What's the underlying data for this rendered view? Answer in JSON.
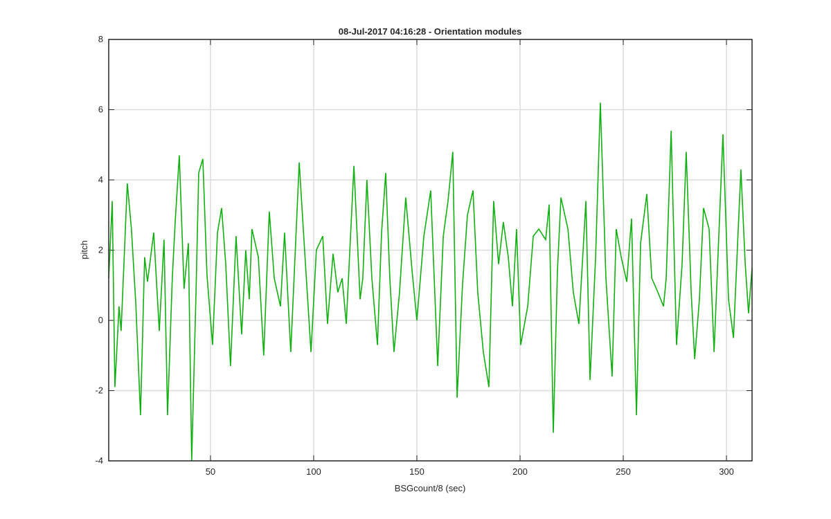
{
  "chart_data": {
    "type": "line",
    "title": "08-Jul-2017 04:16:28 - Orientation modules",
    "x_label": "BSGcount/8 (sec)",
    "y_label": "pitch",
    "xlim": [
      0.7,
      312.4
    ],
    "ylim": [
      -4,
      8
    ],
    "xticks": [
      50,
      100,
      150,
      200,
      250,
      300
    ],
    "yticks": [
      -4,
      -2,
      0,
      2,
      4,
      6,
      8
    ],
    "grid": true,
    "x": [
      0.7,
      2.4,
      3.7,
      5.7,
      6.7,
      9.7,
      11.7,
      13.8,
      16.1,
      18.1,
      19.5,
      22.5,
      25.2,
      27.5,
      29.2,
      31.5,
      32.9,
      34.9,
      37.2,
      39.3,
      40.9,
      43,
      44.3,
      46.3,
      48.3,
      51,
      53.4,
      55.4,
      57.4,
      59.7,
      62.4,
      65.1,
      67.1,
      68.8,
      70.1,
      73.2,
      75.8,
      78.5,
      80.9,
      83.9,
      85.9,
      88.9,
      93,
      95.6,
      98.7,
      101.3,
      104.4,
      106.7,
      109.4,
      111.7,
      113.8,
      115.8,
      119.5,
      122.5,
      123.8,
      125.8,
      128.2,
      130.9,
      132.9,
      134.9,
      136.9,
      138.9,
      141.6,
      144.6,
      147.7,
      150,
      153.4,
      156.7,
      160.1,
      162.8,
      165.1,
      167.4,
      169.5,
      172.1,
      174.5,
      177.2,
      179.5,
      182.2,
      184.9,
      187.2,
      189.6,
      191.9,
      194.3,
      196.3,
      198.3,
      200.3,
      203.7,
      206.4,
      209.1,
      212.4,
      214.1,
      216.1,
      218.1,
      219.8,
      223.2,
      225.8,
      228.5,
      231.9,
      233.9,
      236.6,
      238.9,
      241.6,
      244.6,
      246.6,
      249,
      251.7,
      254,
      256.4,
      258.4,
      261.4,
      263.8,
      266.8,
      269.5,
      270.8,
      273.2,
      275.8,
      278.5,
      280.5,
      282.9,
      284.6,
      286.9,
      288.9,
      291.6,
      294,
      298.3,
      301,
      303.4,
      305.4,
      307,
      309.1,
      310.7,
      312.4
    ],
    "series": [
      {
        "name": "pitch",
        "color": "#11b011",
        "values": [
          1.2,
          3.4,
          -1.9,
          0.4,
          -0.3,
          3.9,
          2.6,
          0.5,
          -2.7,
          1.8,
          1.1,
          2.5,
          -0.3,
          2.3,
          -2.7,
          1.2,
          2.8,
          4.7,
          0.9,
          2.2,
          -4,
          0.8,
          4.2,
          4.6,
          1.3,
          -0.7,
          2.5,
          3.2,
          1.6,
          -1.3,
          2.4,
          -0.4,
          2,
          0.6,
          2.6,
          1.8,
          -1,
          3.1,
          1.2,
          0.4,
          2.5,
          -0.9,
          4.5,
          2,
          -0.9,
          2,
          2.4,
          -0.1,
          1.9,
          0.8,
          1.2,
          -0.1,
          4.4,
          0.6,
          1.2,
          4,
          1.2,
          -0.7,
          2.5,
          4.2,
          1.2,
          -0.9,
          0.8,
          3.5,
          1.4,
          0,
          2.4,
          3.7,
          -1.3,
          2.4,
          3.4,
          4.8,
          -2.2,
          1,
          3,
          3.7,
          0.8,
          -0.9,
          -1.9,
          3.4,
          1.6,
          2.8,
          1.8,
          0.4,
          2.6,
          -0.7,
          0.4,
          2.4,
          2.6,
          2.3,
          3.3,
          -3.2,
          1.4,
          3.5,
          2.6,
          0.8,
          -0.1,
          3.4,
          -1.7,
          1.8,
          6.2,
          1.2,
          -1.6,
          2.6,
          1.8,
          1.1,
          2.9,
          -2.7,
          2.2,
          3.6,
          1.2,
          0.8,
          0.4,
          1.2,
          5.4,
          -0.7,
          1.6,
          4.8,
          0.8,
          -1.1,
          0.6,
          3.2,
          2.6,
          -0.9,
          5.3,
          0.6,
          -0.5,
          2.2,
          4.3,
          1.6,
          0.2,
          1.5
        ]
      }
    ]
  }
}
